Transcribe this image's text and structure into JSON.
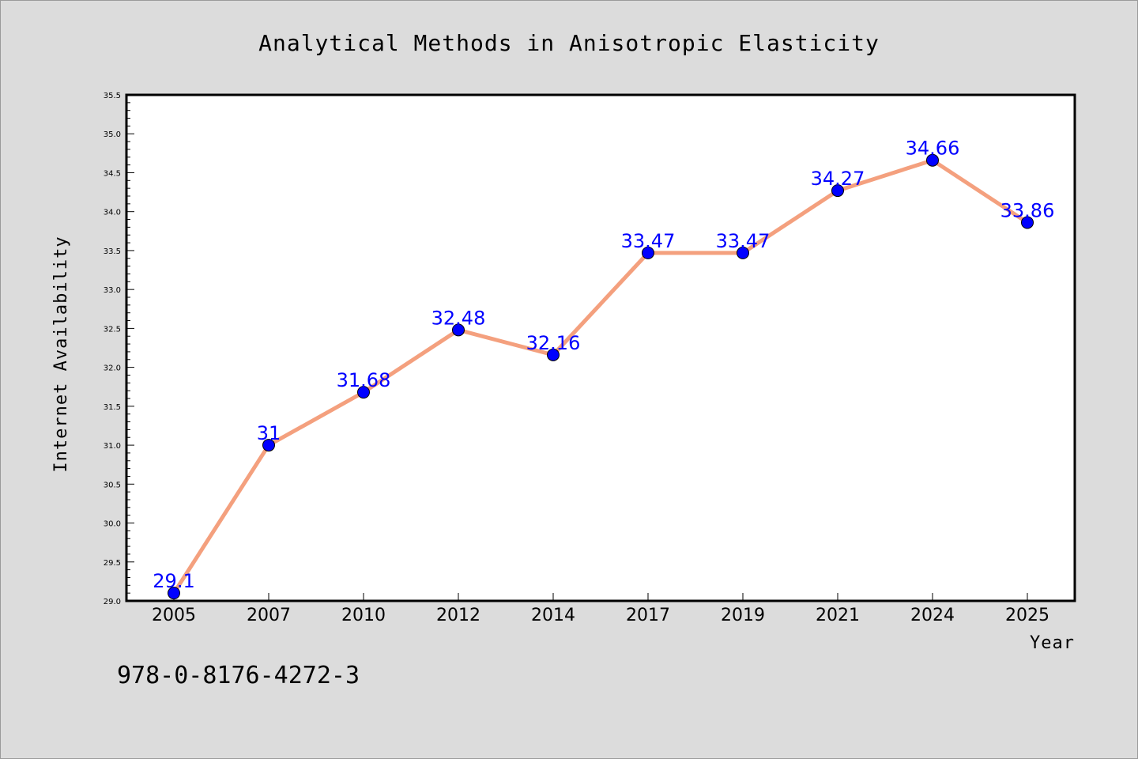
{
  "chart_data": {
    "type": "line",
    "title": "Analytical Methods in Anisotropic Elasticity",
    "xlabel": "Year",
    "ylabel": "Internet Availability",
    "categories": [
      "2005",
      "2007",
      "2010",
      "2012",
      "2014",
      "2017",
      "2019",
      "2021",
      "2024",
      "2025"
    ],
    "series": [
      {
        "values": [
          29.1,
          31,
          31.68,
          32.48,
          32.16,
          33.47,
          33.47,
          34.27,
          34.66,
          33.86
        ],
        "labels": [
          "29.1",
          "31",
          "31.68",
          "32.48",
          "32.16",
          "33.47",
          "33.47",
          "34.27",
          "34.66",
          "33.86"
        ],
        "line_color": "#f4a07e",
        "marker_color": "#0000ff"
      }
    ],
    "ylim": [
      29.0,
      35.5
    ],
    "yticks": [
      "29.0",
      "29.5",
      "30.0",
      "30.5",
      "31.0",
      "31.5",
      "32.0",
      "32.5",
      "33.0",
      "33.5",
      "34.0",
      "34.5",
      "35.0",
      "35.5"
    ],
    "grid": false,
    "legend": "none"
  },
  "annotation": {
    "isbn": "978-0-8176-4272-3"
  }
}
